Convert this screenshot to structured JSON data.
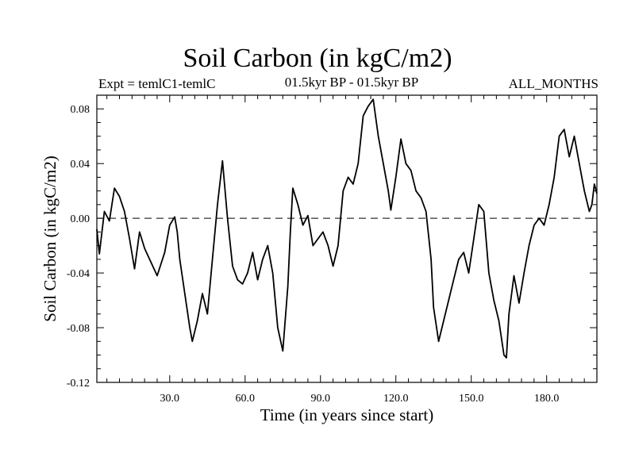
{
  "chart_data": {
    "type": "line",
    "title": "Soil Carbon (in kgC/m2)",
    "subtitle_left": "Expt = temlC1-temlC",
    "subtitle_center": "01.5kyr BP - 01.5kyr BP",
    "subtitle_right": "ALL_MONTHS",
    "xlabel": "Time (in years since start)",
    "ylabel": "Soil Carbon (in kgC/m2)",
    "xlim": [
      1,
      200
    ],
    "ylim": [
      -0.12,
      0.09
    ],
    "xticks": [
      30,
      60,
      90,
      120,
      150,
      180
    ],
    "xtick_labels": [
      "30.0",
      "60.0",
      "90.0",
      "120.0",
      "150.0",
      "180.0"
    ],
    "yticks": [
      -0.12,
      -0.08,
      -0.04,
      0.0,
      0.04,
      0.08
    ],
    "ytick_labels": [
      "-0.12",
      "-0.08",
      "-0.04",
      "0.00",
      "0.04",
      "0.08"
    ],
    "reference_line": 0.0,
    "series": [
      {
        "name": "Soil Carbon",
        "color": "#000000",
        "x": [
          1,
          2,
          4,
          6,
          8,
          10,
          12,
          14,
          16,
          18,
          20,
          22,
          25,
          28,
          30,
          32,
          33,
          34,
          36,
          38,
          39,
          41,
          43,
          45,
          47,
          49,
          51,
          53,
          55,
          57,
          59,
          61,
          63,
          65,
          67,
          69,
          71,
          73,
          75,
          77,
          78,
          79,
          81,
          83,
          85,
          87,
          89,
          91,
          93,
          95,
          97,
          99,
          101,
          103,
          105,
          107,
          109,
          111,
          113,
          115,
          117,
          118,
          120,
          122,
          124,
          126,
          128,
          130,
          132,
          134,
          135,
          137,
          139,
          141,
          143,
          145,
          147,
          149,
          151,
          153,
          155,
          157,
          159,
          161,
          163,
          164,
          165,
          167,
          169,
          171,
          173,
          175,
          177,
          179,
          181,
          183,
          185,
          187,
          189,
          191,
          193,
          195,
          197,
          198,
          199,
          200
        ],
        "y": [
          -0.008,
          -0.026,
          0.005,
          -0.002,
          0.022,
          0.016,
          0.005,
          -0.015,
          -0.037,
          -0.01,
          -0.022,
          -0.03,
          -0.042,
          -0.025,
          -0.005,
          0.001,
          -0.01,
          -0.03,
          -0.055,
          -0.08,
          -0.09,
          -0.075,
          -0.055,
          -0.07,
          -0.03,
          0.01,
          0.042,
          0.0,
          -0.035,
          -0.045,
          -0.048,
          -0.04,
          -0.025,
          -0.045,
          -0.03,
          -0.02,
          -0.04,
          -0.08,
          -0.097,
          -0.05,
          -0.01,
          0.022,
          0.01,
          -0.005,
          0.002,
          -0.02,
          -0.015,
          -0.01,
          -0.02,
          -0.035,
          -0.02,
          0.02,
          0.03,
          0.025,
          0.04,
          0.075,
          0.082,
          0.087,
          0.06,
          0.04,
          0.02,
          0.006,
          0.03,
          0.058,
          0.04,
          0.035,
          0.02,
          0.015,
          0.005,
          -0.03,
          -0.065,
          -0.09,
          -0.075,
          -0.06,
          -0.045,
          -0.03,
          -0.025,
          -0.04,
          -0.015,
          0.01,
          0.005,
          -0.04,
          -0.06,
          -0.075,
          -0.1,
          -0.102,
          -0.07,
          -0.042,
          -0.062,
          -0.04,
          -0.02,
          -0.005,
          0.0,
          -0.005,
          0.01,
          0.03,
          0.06,
          0.065,
          0.045,
          0.06,
          0.04,
          0.02,
          0.005,
          0.01,
          0.025,
          0.018
        ]
      }
    ]
  }
}
